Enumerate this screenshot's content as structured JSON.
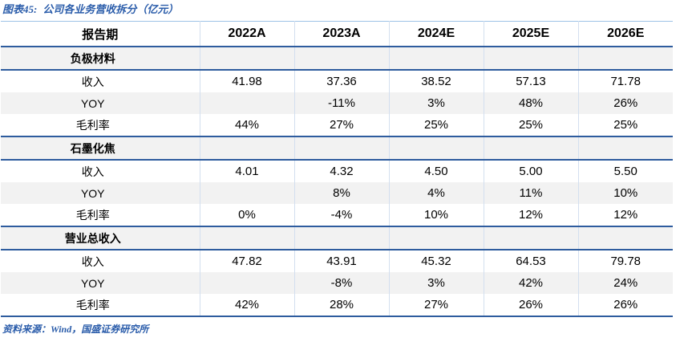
{
  "figure": {
    "label": "图表45:",
    "caption": "公司各业务营收拆分（亿元）"
  },
  "table": {
    "columns": [
      "报告期",
      "2022A",
      "2023A",
      "2024E",
      "2025E",
      "2026E"
    ],
    "sections": [
      {
        "name": "负极材料",
        "rows": [
          {
            "label": "收入",
            "values": [
              "41.98",
              "37.36",
              "38.52",
              "57.13",
              "71.78"
            ]
          },
          {
            "label": "YOY",
            "values": [
              "",
              "-11%",
              "3%",
              "48%",
              "26%"
            ]
          },
          {
            "label": "毛利率",
            "values": [
              "44%",
              "27%",
              "25%",
              "25%",
              "25%"
            ]
          }
        ]
      },
      {
        "name": "石墨化焦",
        "rows": [
          {
            "label": "收入",
            "values": [
              "4.01",
              "4.32",
              "4.50",
              "5.00",
              "5.50"
            ]
          },
          {
            "label": "YOY",
            "values": [
              "",
              "8%",
              "4%",
              "11%",
              "10%"
            ]
          },
          {
            "label": "毛利率",
            "values": [
              "0%",
              "-4%",
              "10%",
              "12%",
              "12%"
            ]
          }
        ]
      },
      {
        "name": "营业总收入",
        "rows": [
          {
            "label": "收入",
            "values": [
              "47.82",
              "43.91",
              "45.32",
              "64.53",
              "79.78"
            ]
          },
          {
            "label": "YOY",
            "values": [
              "",
              "-8%",
              "3%",
              "42%",
              "24%"
            ]
          },
          {
            "label": "毛利率",
            "values": [
              "42%",
              "28%",
              "27%",
              "26%",
              "26%"
            ]
          }
        ]
      }
    ]
  },
  "source": "资料来源：Wind，国盛证券研究所",
  "colors": {
    "accent_blue_text": "#2A5CAA",
    "rule_dark_blue": "#2E5C9E",
    "rule_light_blue": "#9DC3E6",
    "column_separator": "#D3DFEF",
    "row_shade_gray": "#F2F2F2"
  }
}
